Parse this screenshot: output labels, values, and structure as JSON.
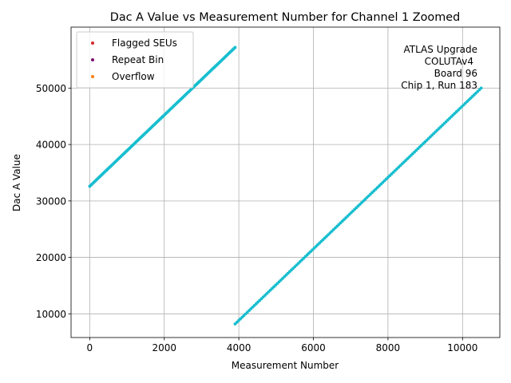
{
  "chart_data": {
    "type": "scatter",
    "title": "Dac A Value vs Measurement Number for Channel 1 Zoomed",
    "xlabel": "Measurement Number",
    "ylabel": "Dac A Value",
    "xlim": [
      -500,
      11000
    ],
    "ylim": [
      5800,
      60800
    ],
    "xticks": [
      0,
      2000,
      4000,
      6000,
      8000,
      10000
    ],
    "yticks": [
      10000,
      20000,
      30000,
      40000,
      50000
    ],
    "grid": true,
    "legend_position": "upper-left",
    "legend": [
      {
        "label": "Flagged SEUs",
        "color": "#d62728"
      },
      {
        "label": "Repeat Bin",
        "color": "#7b0f6b"
      },
      {
        "label": "Overflow",
        "color": "#ff7f0e"
      }
    ],
    "annotation_lines": [
      "ATLAS Upgrade",
      "COLUTAv4",
      "Board 96",
      "Chip 1, Run 183"
    ],
    "series": [
      {
        "color": "#17becf",
        "segments": [
          {
            "x_start": 0,
            "x_end": 3900,
            "y_start": 32600,
            "y_end": 57200
          },
          {
            "x_start": 3900,
            "x_end": 10500,
            "y_start": 8200,
            "y_end": 50000
          }
        ]
      }
    ]
  }
}
